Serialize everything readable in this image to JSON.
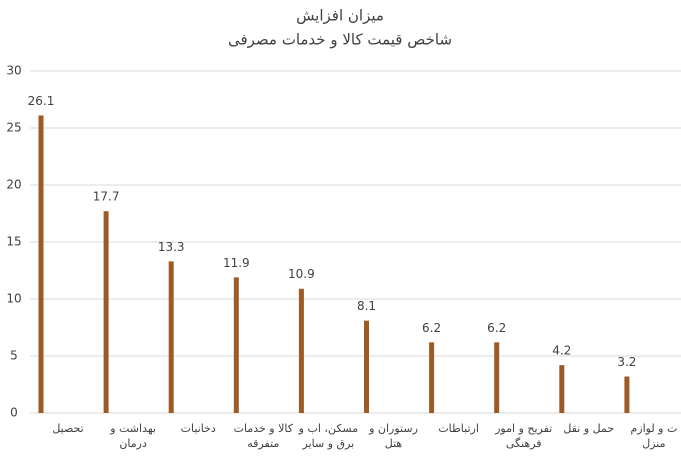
{
  "chart_data": {
    "type": "bar",
    "title": "میزان افزایش",
    "subtitle": "شاخص قیمت کالا و خدمات مصرفی",
    "categories": [
      "تحصیل",
      "بهداشت و درمان",
      "دخانیات",
      "کالا و خدمات متفرقه",
      "مسکن، اب و برق و سایر",
      "رستوران و هتل",
      "ارتباطات",
      "تفریح و امور فرهنگی",
      "حمل و نقل",
      "ت و لوازم منزل"
    ],
    "values": [
      26.1,
      17.7,
      13.3,
      11.9,
      10.9,
      8.1,
      6.2,
      6.2,
      4.2,
      3.2
    ],
    "color": "#9c5a25",
    "ylim": [
      0,
      30
    ],
    "yticks": [
      0,
      5,
      10,
      15,
      20,
      25,
      30
    ],
    "grid": true
  }
}
